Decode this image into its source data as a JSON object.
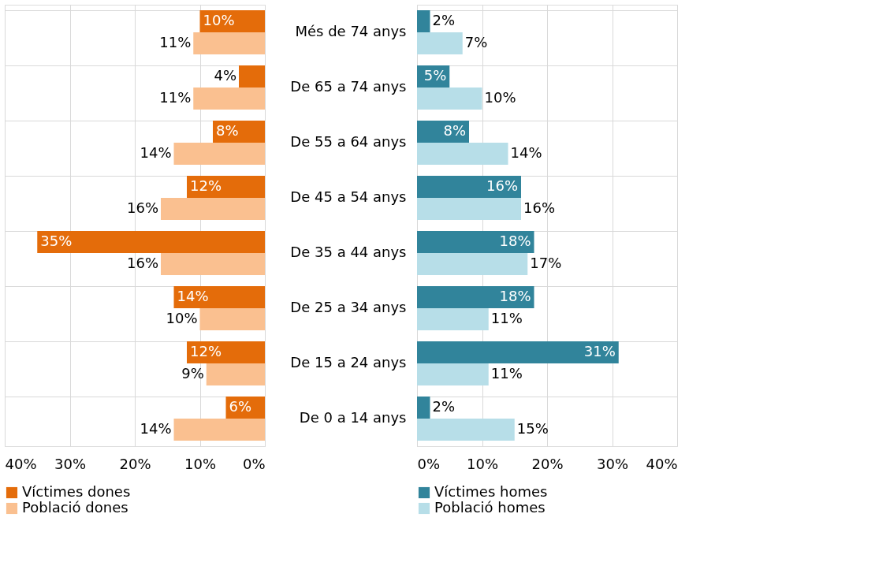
{
  "chart_data": [
    {
      "type": "bar",
      "orientation": "horizontal",
      "categories": [
        null,
        null,
        null,
        null,
        null,
        null,
        null,
        null
      ],
      "xlim": [
        40,
        0
      ],
      "xticks": [
        {
          "value": 40,
          "label": "40%"
        },
        {
          "value": 30,
          "label": "30%"
        },
        {
          "value": 20,
          "label": "20%"
        },
        {
          "value": 10,
          "label": "10%"
        },
        {
          "value": 0,
          "label": "0%"
        }
      ],
      "grid": true,
      "legend": "bottom",
      "tick_labels": "x",
      "series": [
        {
          "name": "Víctimes dones",
          "color": "#e46c0a",
          "values": [
            10,
            4,
            8,
            12,
            35,
            14,
            12,
            6
          ],
          "value_labels": [
            "10%",
            "4%",
            "8%",
            "12%",
            "35%",
            "14%",
            "12%",
            "6%"
          ]
        },
        {
          "name": "Població dones",
          "color": "#fac090",
          "values": [
            11,
            11,
            14,
            16,
            16,
            10,
            9,
            14
          ],
          "value_labels": [
            "11%",
            "11%",
            "14%",
            "16%",
            "16%",
            "10%",
            "9%",
            "14%"
          ]
        }
      ]
    },
    {
      "type": "bar",
      "orientation": "horizontal",
      "categories": [
        "Més de 74 anys",
        "De 65 a 74 anys",
        "De 55 a 64 anys",
        "De 45 a 54 anys",
        "De 35 a 44 anys",
        "De 25 a 34 anys",
        "De 15 a 24 anys",
        "De 0 a 14 anys"
      ],
      "xlim": [
        0,
        40
      ],
      "xticks": [
        {
          "value": 0,
          "label": "0%"
        },
        {
          "value": 10,
          "label": "10%"
        },
        {
          "value": 20,
          "label": "20%"
        },
        {
          "value": 30,
          "label": "30%"
        },
        {
          "value": 40,
          "label": "40%"
        }
      ],
      "grid": true,
      "legend": "bottom",
      "series": [
        {
          "name": "Víctimes homes",
          "color": "#31849b",
          "values": [
            2,
            5,
            8,
            16,
            18,
            18,
            31,
            2
          ],
          "value_labels": [
            "2%",
            "5%",
            "8%",
            "16%",
            "18%",
            "18%",
            "31%",
            "2%"
          ]
        },
        {
          "name": "Població homes",
          "color": "#b7dee8",
          "values": [
            7,
            10,
            14,
            16,
            17,
            11,
            11,
            15
          ],
          "value_labels": [
            "7%",
            "10%",
            "14%",
            "16%",
            "17%",
            "11%",
            "11%",
            "15%"
          ]
        }
      ]
    }
  ]
}
